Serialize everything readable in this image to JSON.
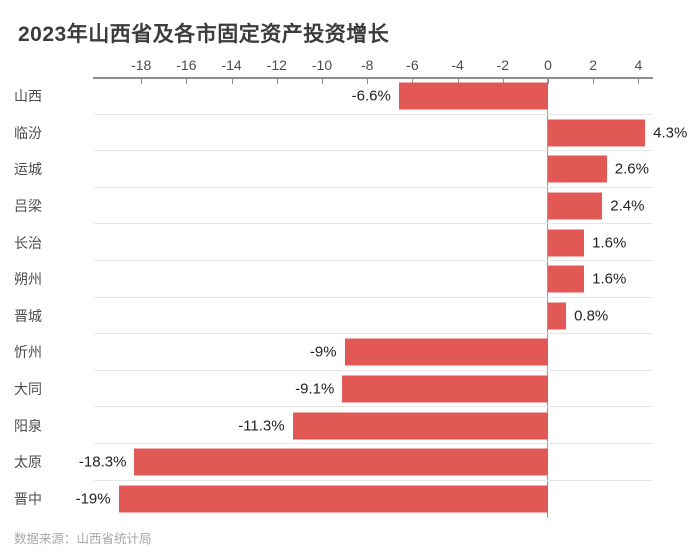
{
  "title": "2023年山西省及各市固定资产投资增长",
  "source": "数据来源：山西省统计局",
  "colors": {
    "bar": "#e15855",
    "axis": "#8f8f8f",
    "separator": "#e6e6e6",
    "title_text": "#3c3c3c",
    "value_text": "#222222",
    "label_text": "#4d4d4d",
    "source_text": "#a8a8a8",
    "background": "#ffffff"
  },
  "chart_data": {
    "type": "bar",
    "orientation": "horizontal",
    "title": "2023年山西省及各市固定资产投资增长",
    "xlabel": "",
    "ylabel": "",
    "xlim": [
      -20,
      4.65
    ],
    "x_ticks": [
      -18,
      -16,
      -14,
      -12,
      -10,
      -8,
      -6,
      -4,
      -2,
      0,
      2,
      4
    ],
    "axis_position": "top",
    "grid": "horizontal-row-separators",
    "legend_position": "none",
    "categories": [
      "山西",
      "临汾",
      "运城",
      "吕梁",
      "长治",
      "朔州",
      "晋城",
      "忻州",
      "大同",
      "阳泉",
      "太原",
      "晋中"
    ],
    "values": [
      -6.6,
      4.3,
      2.6,
      2.4,
      1.6,
      1.6,
      0.8,
      -9,
      -9.1,
      -11.3,
      -18.3,
      -19
    ],
    "value_labels": [
      "-6.6%",
      "4.3%",
      "2.6%",
      "2.4%",
      "1.6%",
      "1.6%",
      "0.8%",
      "-9%",
      "-9.1%",
      "-11.3%",
      "-18.3%",
      "-19%"
    ],
    "unit": "%"
  }
}
